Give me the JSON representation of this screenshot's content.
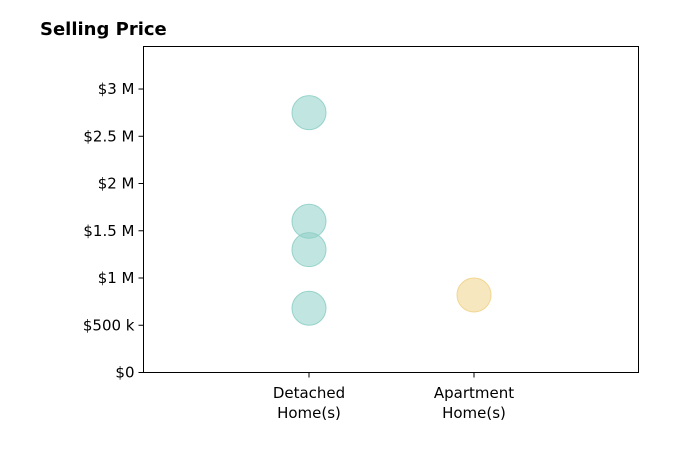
{
  "chart_data": {
    "type": "scatter",
    "title": "Selling Price",
    "xlabel": "",
    "ylabel": "",
    "categories": [
      [
        "Detached",
        "Home(s)"
      ],
      [
        "Apartment",
        "Home(s)"
      ]
    ],
    "ylim": [
      0,
      3450000
    ],
    "yticks": [
      0,
      500000,
      1000000,
      1500000,
      2000000,
      2500000,
      3000000
    ],
    "ytick_labels": [
      "$0",
      "$500 k",
      "$1 M",
      "$1.5 M",
      "$2 M",
      "$2.5 M",
      "$3 M"
    ],
    "grid": false,
    "series": [
      {
        "category_index": 0,
        "values": [
          2750000,
          1600000,
          1300000,
          680000
        ],
        "color": "#8ecfc7"
      },
      {
        "category_index": 1,
        "values": [
          820000
        ],
        "color": "#f0d38a"
      }
    ]
  }
}
